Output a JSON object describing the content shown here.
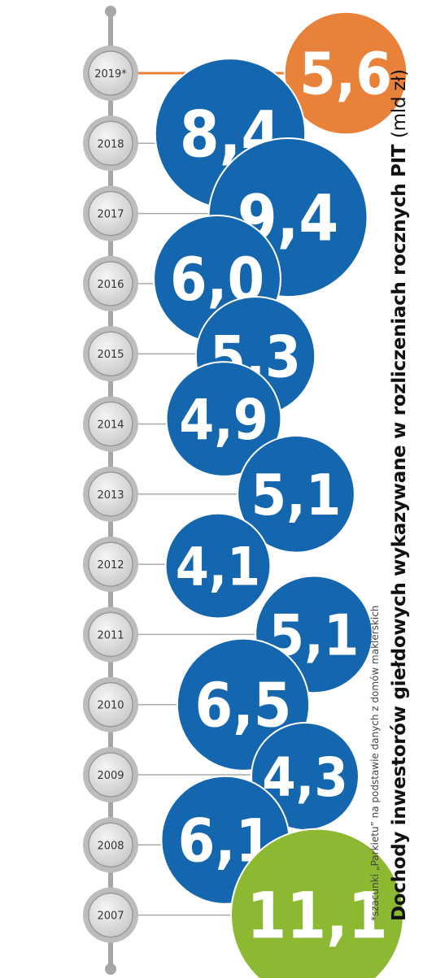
{
  "chart_data": {
    "type": "bubble",
    "title": "Dochody inwestorów giełdowych wykazywane w rozliczeniach rocznych PIT",
    "unit": "(mld zł)",
    "footnote": "*szacunki „Parkietu” na podstawie danych z domów maklerskich",
    "categories": [
      "2019*",
      "2018",
      "2017",
      "2016",
      "2015",
      "2014",
      "2013",
      "2012",
      "2011",
      "2010",
      "2009",
      "2008",
      "2007"
    ],
    "values": [
      5.6,
      8.4,
      9.4,
      6.0,
      5.3,
      4.9,
      5.1,
      4.1,
      5.1,
      6.5,
      4.3,
      6.1,
      11.1
    ],
    "labels": [
      "5,6",
      "8,4",
      "9,4",
      "6,0",
      "5,3",
      "4,9",
      "5,1",
      "4,1",
      "5,1",
      "6,5",
      "4,3",
      "6,1",
      "11,1"
    ],
    "colors": {
      "estimate": "#e8823a",
      "regular": "#1467ae",
      "max": "#8cb832",
      "line": "#aaaaaa",
      "label": "#ffffff"
    }
  }
}
